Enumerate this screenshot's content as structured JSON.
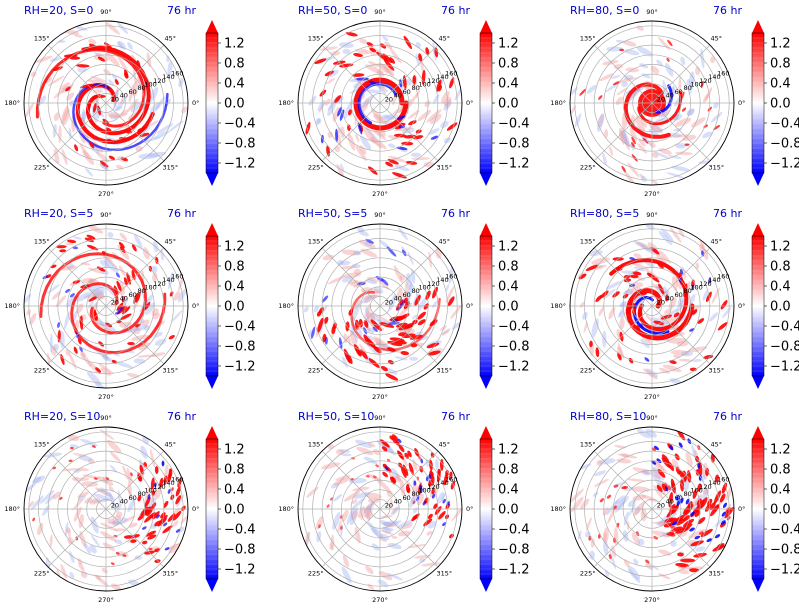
{
  "figure": {
    "colormap": "bwr",
    "colors": {
      "blue": "#0000ff",
      "white": "#ffffff",
      "red": "#ff0000",
      "title_color": "#0000cc"
    }
  },
  "chart_data": [
    {
      "type": "heatmap",
      "projection": "polar",
      "title_left": "RH=20, S=0",
      "title_right": "76 hr",
      "angle_ticks": [
        "0°",
        "45°",
        "90°",
        "135°",
        "180°",
        "225°",
        "270°",
        "315°"
      ],
      "radial_ticks": [
        "20",
        "40",
        "60",
        "80",
        "100",
        "120",
        "140",
        "160"
      ],
      "rlim": [
        0,
        170
      ],
      "colorbar": {
        "ticks": [
          "1.2",
          "0.8",
          "0.4",
          "0.0",
          "−0.4",
          "−0.8",
          "−1.2"
        ],
        "range": [
          -1.4,
          1.4
        ]
      },
      "pattern": "inner_spiral"
    },
    {
      "type": "heatmap",
      "projection": "polar",
      "title_left": "RH=50, S=0",
      "title_right": "76 hr",
      "angle_ticks": [
        "0°",
        "45°",
        "90°",
        "135°",
        "180°",
        "225°",
        "270°",
        "315°"
      ],
      "radial_ticks": [
        "20",
        "40",
        "60",
        "80",
        "100",
        "120",
        "140",
        "160"
      ],
      "rlim": [
        0,
        170
      ],
      "colorbar": {
        "ticks": [
          "1.2",
          "0.8",
          "0.4",
          "0.0",
          "−0.4",
          "−0.8",
          "−1.2"
        ],
        "range": [
          -1.4,
          1.4
        ]
      },
      "pattern": "eyewall_ring"
    },
    {
      "type": "heatmap",
      "projection": "polar",
      "title_left": "RH=80, S=0",
      "title_right": "76 hr",
      "angle_ticks": [
        "0°",
        "45°",
        "90°",
        "135°",
        "180°",
        "225°",
        "270°",
        "315°"
      ],
      "radial_ticks": [
        "20",
        "40",
        "60",
        "80",
        "100",
        "120",
        "140",
        "160"
      ],
      "rlim": [
        0,
        170
      ],
      "colorbar": {
        "ticks": [
          "1.2",
          "0.8",
          "0.4",
          "0.0",
          "−0.4",
          "−0.8",
          "−1.2"
        ],
        "range": [
          -1.4,
          1.4
        ]
      },
      "pattern": "compact_core"
    },
    {
      "type": "heatmap",
      "projection": "polar",
      "title_left": "RH=20, S=5",
      "title_right": "76 hr",
      "angle_ticks": [
        "0°",
        "45°",
        "90°",
        "135°",
        "180°",
        "225°",
        "270°",
        "315°"
      ],
      "radial_ticks": [
        "20",
        "40",
        "60",
        "80",
        "100",
        "120",
        "140",
        "160"
      ],
      "rlim": [
        0,
        170
      ],
      "colorbar": {
        "ticks": [
          "1.2",
          "0.8",
          "0.4",
          "0.0",
          "−0.4",
          "−0.8",
          "−1.2"
        ],
        "range": [
          -1.4,
          1.4
        ]
      },
      "pattern": "spiral_bands"
    },
    {
      "type": "heatmap",
      "projection": "polar",
      "title_left": "RH=50, S=5",
      "title_right": "76 hr",
      "angle_ticks": [
        "0°",
        "45°",
        "90°",
        "135°",
        "180°",
        "225°",
        "270°",
        "315°"
      ],
      "radial_ticks": [
        "20",
        "40",
        "60",
        "80",
        "100",
        "120",
        "140",
        "160"
      ],
      "rlim": [
        0,
        170
      ],
      "colorbar": {
        "ticks": [
          "1.2",
          "0.8",
          "0.4",
          "0.0",
          "−0.4",
          "−0.8",
          "−1.2"
        ],
        "range": [
          -1.4,
          1.4
        ]
      },
      "pattern": "asymmetric_south"
    },
    {
      "type": "heatmap",
      "projection": "polar",
      "title_left": "RH=80, S=5",
      "title_right": "76 hr",
      "angle_ticks": [
        "0°",
        "45°",
        "90°",
        "135°",
        "180°",
        "225°",
        "270°",
        "315°"
      ],
      "radial_ticks": [
        "20",
        "40",
        "60",
        "80",
        "100",
        "120",
        "140",
        "160"
      ],
      "rlim": [
        0,
        170
      ],
      "colorbar": {
        "ticks": [
          "1.2",
          "0.8",
          "0.4",
          "0.0",
          "−0.4",
          "−0.8",
          "−1.2"
        ],
        "range": [
          -1.4,
          1.4
        ]
      },
      "pattern": "strong_spiral"
    },
    {
      "type": "heatmap",
      "projection": "polar",
      "title_left": "RH=20, S=10",
      "title_right": "76 hr",
      "angle_ticks": [
        "0°",
        "45°",
        "90°",
        "135°",
        "180°",
        "225°",
        "270°",
        "315°"
      ],
      "radial_ticks": [
        "20",
        "40",
        "60",
        "80",
        "100",
        "120",
        "140",
        "160"
      ],
      "rlim": [
        0,
        170
      ],
      "colorbar": {
        "ticks": [
          "1.2",
          "0.8",
          "0.4",
          "0.0",
          "−0.4",
          "−0.8",
          "−1.2"
        ],
        "range": [
          -1.4,
          1.4
        ]
      },
      "pattern": "sheared_east"
    },
    {
      "type": "heatmap",
      "projection": "polar",
      "title_left": "RH=50, S=10",
      "title_right": "76 hr",
      "angle_ticks": [
        "0°",
        "45°",
        "90°",
        "135°",
        "180°",
        "225°",
        "270°",
        "315°"
      ],
      "radial_ticks": [
        "20",
        "40",
        "60",
        "80",
        "100",
        "120",
        "140",
        "160"
      ],
      "rlim": [
        0,
        170
      ],
      "colorbar": {
        "ticks": [
          "1.2",
          "0.8",
          "0.4",
          "0.0",
          "−0.4",
          "−0.8",
          "−1.2"
        ],
        "range": [
          -1.4,
          1.4
        ]
      },
      "pattern": "sheared_northeast"
    },
    {
      "type": "heatmap",
      "projection": "polar",
      "title_left": "RH=80, S=10",
      "title_right": "76 hr",
      "angle_ticks": [
        "0°",
        "45°",
        "90°",
        "135°",
        "180°",
        "225°",
        "270°",
        "315°"
      ],
      "radial_ticks": [
        "20",
        "40",
        "60",
        "80",
        "100",
        "120",
        "140",
        "160"
      ],
      "rlim": [
        0,
        170
      ],
      "colorbar": {
        "ticks": [
          "1.2",
          "0.8",
          "0.4",
          "0.0",
          "−0.4",
          "−0.8",
          "−1.2"
        ],
        "range": [
          -1.4,
          1.4
        ]
      },
      "pattern": "sheared_east_strong"
    }
  ]
}
